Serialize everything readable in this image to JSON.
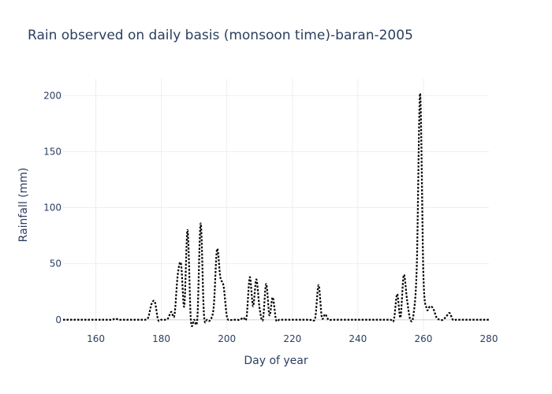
{
  "chart_data": {
    "type": "line",
    "title": "Rain observed on daily basis (monsoon time)-baran-2005",
    "xlabel": "Day of year",
    "ylabel": "Rainfall (mm)",
    "xlim": [
      150,
      280
    ],
    "ylim": [
      -10,
      215
    ],
    "xticks": [
      160,
      180,
      200,
      220,
      240,
      260,
      280
    ],
    "yticks": [
      0,
      50,
      100,
      150,
      200
    ],
    "grid": true,
    "legend": "none",
    "line_style": "dotted",
    "line_color": "#000000",
    "x": [
      150,
      151,
      152,
      153,
      154,
      155,
      156,
      157,
      158,
      159,
      160,
      161,
      162,
      163,
      164,
      165,
      166,
      167,
      168,
      169,
      170,
      171,
      172,
      173,
      174,
      175,
      176,
      177,
      178,
      179,
      180,
      181,
      182,
      183,
      184,
      185,
      186,
      187,
      188,
      189,
      190,
      191,
      192,
      193,
      194,
      195,
      196,
      197,
      198,
      199,
      200,
      201,
      202,
      203,
      204,
      205,
      206,
      207,
      208,
      209,
      210,
      211,
      212,
      213,
      214,
      215,
      216,
      217,
      218,
      219,
      220,
      221,
      222,
      223,
      224,
      225,
      226,
      227,
      228,
      229,
      230,
      231,
      232,
      233,
      234,
      235,
      236,
      237,
      238,
      239,
      240,
      241,
      242,
      243,
      244,
      245,
      246,
      247,
      248,
      249,
      250,
      251,
      252,
      253,
      254,
      255,
      256,
      257,
      258,
      259,
      260,
      261,
      262,
      263,
      264,
      265,
      266,
      267,
      268,
      269,
      270,
      271,
      272,
      273,
      274,
      275,
      276,
      277,
      278,
      279,
      280
    ],
    "y": [
      0,
      0,
      0,
      0,
      0,
      0,
      0,
      0,
      0,
      0,
      0,
      0,
      0,
      0,
      0,
      0,
      1,
      0,
      0,
      0,
      0,
      0,
      0,
      0,
      0,
      0,
      2,
      14,
      16,
      0,
      0,
      0,
      1,
      7,
      4,
      40,
      50,
      12,
      80,
      0,
      0,
      2,
      86,
      5,
      0,
      0,
      12,
      63,
      38,
      30,
      3,
      0,
      0,
      0,
      0,
      2,
      2,
      38,
      12,
      36,
      10,
      0,
      32,
      4,
      20,
      0,
      0,
      0,
      0,
      0,
      0,
      0,
      0,
      0,
      0,
      0,
      0,
      2,
      31,
      2,
      5,
      0,
      0,
      0,
      0,
      0,
      0,
      0,
      0,
      0,
      0,
      0,
      0,
      0,
      0,
      0,
      0,
      0,
      0,
      0,
      0,
      0,
      23,
      2,
      40,
      18,
      0,
      5,
      50,
      202,
      40,
      10,
      12,
      10,
      2,
      0,
      0,
      3,
      6,
      0,
      0,
      0,
      0,
      0,
      0,
      0,
      0,
      0,
      0,
      0,
      0
    ]
  }
}
